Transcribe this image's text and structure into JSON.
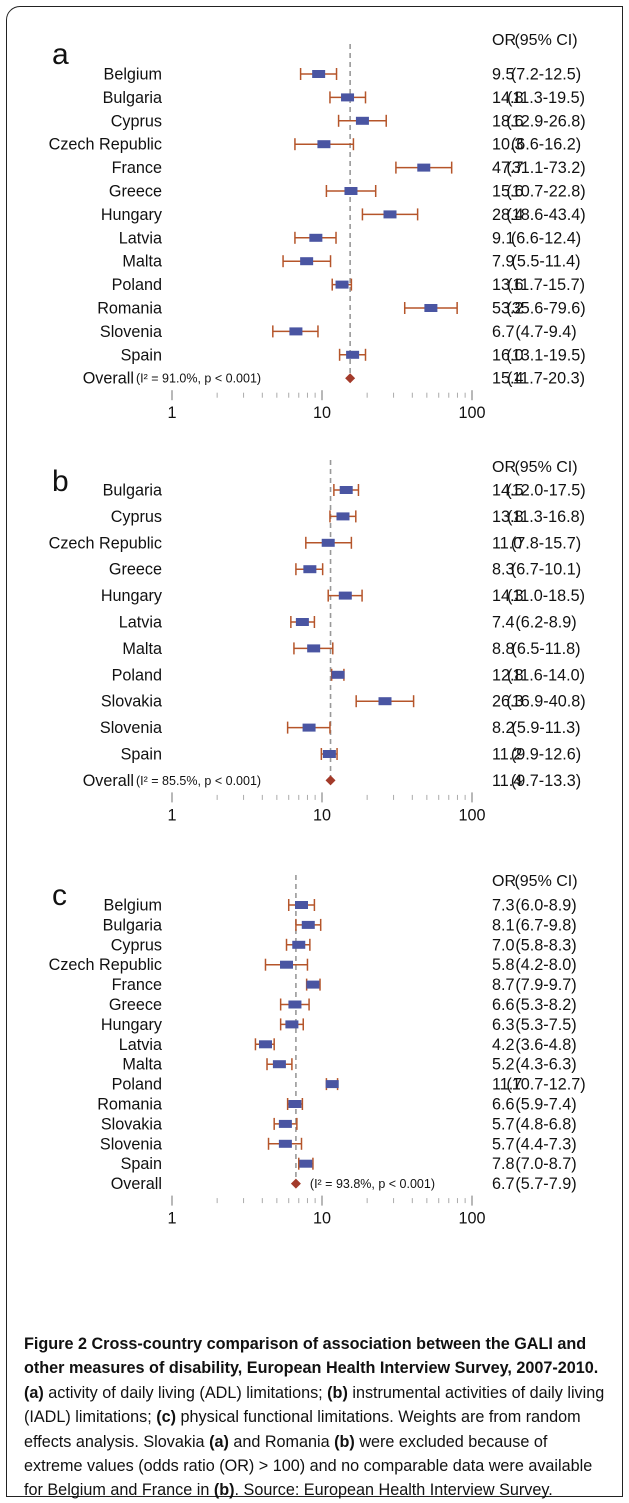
{
  "chart_data": [
    {
      "type": "forest",
      "panel_label": "a",
      "col_headers": {
        "or": "OR",
        "ci": "(95% CI)"
      },
      "x_scale": "log",
      "xlim": [
        1,
        100
      ],
      "x_ticks": [
        "1",
        "10",
        "100"
      ],
      "reference_line": 15.4,
      "rows": [
        {
          "label": "Belgium",
          "or": 9.5,
          "lo": 7.2,
          "hi": 12.5,
          "or_text": "9.5",
          "ci_text": "(7.2-12.5)"
        },
        {
          "label": "Bulgaria",
          "or": 14.8,
          "lo": 11.3,
          "hi": 19.5,
          "or_text": "14.8",
          "ci_text": "(11.3-19.5)"
        },
        {
          "label": "Cyprus",
          "or": 18.6,
          "lo": 12.9,
          "hi": 26.8,
          "or_text": "18.6",
          "ci_text": "(12.9-26.8)"
        },
        {
          "label": "Czech Republic",
          "or": 10.3,
          "lo": 6.6,
          "hi": 16.2,
          "or_text": "10.3",
          "ci_text": "(6.6-16.2)"
        },
        {
          "label": "France",
          "or": 47.7,
          "lo": 31.1,
          "hi": 73.2,
          "or_text": "47.7",
          "ci_text": "(31.1-73.2)"
        },
        {
          "label": "Greece",
          "or": 15.6,
          "lo": 10.7,
          "hi": 22.8,
          "or_text": "15.6",
          "ci_text": "(10.7-22.8)"
        },
        {
          "label": "Hungary",
          "or": 28.4,
          "lo": 18.6,
          "hi": 43.4,
          "or_text": "28.4",
          "ci_text": "(18.6-43.4)"
        },
        {
          "label": "Latvia",
          "or": 9.1,
          "lo": 6.6,
          "hi": 12.4,
          "or_text": "9.1",
          "ci_text": "(6.6-12.4)"
        },
        {
          "label": "Malta",
          "or": 7.9,
          "lo": 5.5,
          "hi": 11.4,
          "or_text": "7.9",
          "ci_text": "(5.5-11.4)"
        },
        {
          "label": "Poland",
          "or": 13.6,
          "lo": 11.7,
          "hi": 15.7,
          "or_text": "13.6",
          "ci_text": "(11.7-15.7)"
        },
        {
          "label": "Romania",
          "or": 53.2,
          "lo": 35.6,
          "hi": 79.6,
          "or_text": "53.2",
          "ci_text": "(35.6-79.6)"
        },
        {
          "label": "Slovenia",
          "or": 6.7,
          "lo": 4.7,
          "hi": 9.4,
          "or_text": "6.7",
          "ci_text": "(4.7-9.4)"
        },
        {
          "label": "Spain",
          "or": 16.0,
          "lo": 13.1,
          "hi": 19.5,
          "or_text": "16.0",
          "ci_text": "(13.1-19.5)"
        }
      ],
      "overall": {
        "label": "Overall",
        "stat": "(I² = 91.0%, p < 0.001)",
        "stat_side": "left",
        "or": 15.4,
        "lo": 11.7,
        "hi": 20.3,
        "or_text": "15.4",
        "ci_text": "(11.7-20.3)"
      }
    },
    {
      "type": "forest",
      "panel_label": "b",
      "col_headers": {
        "or": "OR",
        "ci": "(95% CI)"
      },
      "x_scale": "log",
      "xlim": [
        1,
        100
      ],
      "x_ticks": [
        "1",
        "10",
        "100"
      ],
      "reference_line": 11.4,
      "rows": [
        {
          "label": "Bulgaria",
          "or": 14.5,
          "lo": 12.0,
          "hi": 17.5,
          "or_text": "14.5",
          "ci_text": "(12.0-17.5)"
        },
        {
          "label": "Cyprus",
          "or": 13.8,
          "lo": 11.3,
          "hi": 16.8,
          "or_text": "13.8",
          "ci_text": "(11.3-16.8)"
        },
        {
          "label": "Czech Republic",
          "or": 11.0,
          "lo": 7.8,
          "hi": 15.7,
          "or_text": "11.0",
          "ci_text": "(7.8-15.7)"
        },
        {
          "label": "Greece",
          "or": 8.3,
          "lo": 6.7,
          "hi": 10.1,
          "or_text": "8.3",
          "ci_text": "(6.7-10.1)"
        },
        {
          "label": "Hungary",
          "or": 14.3,
          "lo": 11.0,
          "hi": 18.5,
          "or_text": "14.3",
          "ci_text": "(11.0-18.5)"
        },
        {
          "label": "Latvia",
          "or": 7.4,
          "lo": 6.2,
          "hi": 8.9,
          "or_text": "7.4",
          "ci_text": "(6.2-8.9)"
        },
        {
          "label": "Malta",
          "or": 8.8,
          "lo": 6.5,
          "hi": 11.8,
          "or_text": "8.8",
          "ci_text": "(6.5-11.8)"
        },
        {
          "label": "Poland",
          "or": 12.8,
          "lo": 11.6,
          "hi": 14.0,
          "or_text": "12.8",
          "ci_text": "(11.6-14.0)"
        },
        {
          "label": "Slovakia",
          "or": 26.3,
          "lo": 16.9,
          "hi": 40.8,
          "or_text": "26.3",
          "ci_text": "(16.9-40.8)"
        },
        {
          "label": "Slovenia",
          "or": 8.2,
          "lo": 5.9,
          "hi": 11.3,
          "or_text": "8.2",
          "ci_text": "(5.9-11.3)"
        },
        {
          "label": "Spain",
          "or": 11.2,
          "lo": 9.9,
          "hi": 12.6,
          "or_text": "11.2",
          "ci_text": "(9.9-12.6)"
        }
      ],
      "overall": {
        "label": "Overall",
        "stat": "(I² = 85.5%, p < 0.001)",
        "stat_side": "left",
        "or": 11.4,
        "lo": 9.7,
        "hi": 13.3,
        "or_text": "11.4",
        "ci_text": "(9.7-13.3)"
      }
    },
    {
      "type": "forest",
      "panel_label": "c",
      "col_headers": {
        "or": "OR",
        "ci": "(95% CI)"
      },
      "x_scale": "log",
      "xlim": [
        1,
        100
      ],
      "x_ticks": [
        "1",
        "10",
        "100"
      ],
      "reference_line": 6.7,
      "rows": [
        {
          "label": "Belgium",
          "or": 7.3,
          "lo": 6.0,
          "hi": 8.9,
          "or_text": "7.3",
          "ci_text": "(6.0-8.9)"
        },
        {
          "label": "Bulgaria",
          "or": 8.1,
          "lo": 6.7,
          "hi": 9.8,
          "or_text": "8.1",
          "ci_text": "(6.7-9.8)"
        },
        {
          "label": "Cyprus",
          "or": 7.0,
          "lo": 5.8,
          "hi": 8.3,
          "or_text": "7.0",
          "ci_text": "(5.8-8.3)"
        },
        {
          "label": "Czech Republic",
          "or": 5.8,
          "lo": 4.2,
          "hi": 8.0,
          "or_text": "5.8",
          "ci_text": "(4.2-8.0)"
        },
        {
          "label": "France",
          "or": 8.7,
          "lo": 7.9,
          "hi": 9.7,
          "or_text": "8.7",
          "ci_text": "(7.9-9.7)"
        },
        {
          "label": "Greece",
          "or": 6.6,
          "lo": 5.3,
          "hi": 8.2,
          "or_text": "6.6",
          "ci_text": "(5.3-8.2)"
        },
        {
          "label": "Hungary",
          "or": 6.3,
          "lo": 5.3,
          "hi": 7.5,
          "or_text": "6.3",
          "ci_text": "(5.3-7.5)"
        },
        {
          "label": "Latvia",
          "or": 4.2,
          "lo": 3.6,
          "hi": 4.8,
          "or_text": "4.2",
          "ci_text": "(3.6-4.8)"
        },
        {
          "label": "Malta",
          "or": 5.2,
          "lo": 4.3,
          "hi": 6.3,
          "or_text": "5.2",
          "ci_text": "(4.3-6.3)"
        },
        {
          "label": "Poland",
          "or": 11.7,
          "lo": 10.7,
          "hi": 12.7,
          "or_text": "11.7",
          "ci_text": "(10.7-12.7)"
        },
        {
          "label": "Romania",
          "or": 6.6,
          "lo": 5.9,
          "hi": 7.4,
          "or_text": "6.6",
          "ci_text": "(5.9-7.4)"
        },
        {
          "label": "Slovakia",
          "or": 5.7,
          "lo": 4.8,
          "hi": 6.8,
          "or_text": "5.7",
          "ci_text": "(4.8-6.8)"
        },
        {
          "label": "Slovenia",
          "or": 5.7,
          "lo": 4.4,
          "hi": 7.3,
          "or_text": "5.7",
          "ci_text": "(4.4-7.3)"
        },
        {
          "label": "Spain",
          "or": 7.8,
          "lo": 7.0,
          "hi": 8.7,
          "or_text": "7.8",
          "ci_text": "(7.0-8.7)"
        }
      ],
      "overall": {
        "label": "Overall",
        "stat": "(I² = 93.8%, p < 0.001)",
        "stat_side": "right",
        "or": 6.7,
        "lo": 5.7,
        "hi": 7.9,
        "or_text": "6.7",
        "ci_text": "(5.7-7.9)"
      }
    }
  ],
  "colors": {
    "box": "#4a55a2",
    "whisker": "#b5552a",
    "diamond": "#a33a2a",
    "refline": "#999999",
    "text": "#111111"
  },
  "caption": {
    "title": "Figure 2 Cross-country comparison of association between the GALI and other measures of disability, European Health Interview Survey, 2007-2010.",
    "a_label": "(a)",
    "a_text": " activity of daily living (ADL) limitations; ",
    "b_label": "(b)",
    "b_text": " instrumental activities of daily living (IADL) limitations; ",
    "c_label": "(c)",
    "c_text": " physical functional limitations. Weights are from random effects analysis. Slovakia ",
    "a2_label": "(a)",
    "mid_text": " and Romania ",
    "b2_label": "(b)",
    "tail_text": " were excluded because of extreme values (odds ratio (OR) > 100) and no comparable data were available for Belgium and France in ",
    "b3_label": "(b)",
    "end_text": ". Source: European Health Interview Survey."
  }
}
